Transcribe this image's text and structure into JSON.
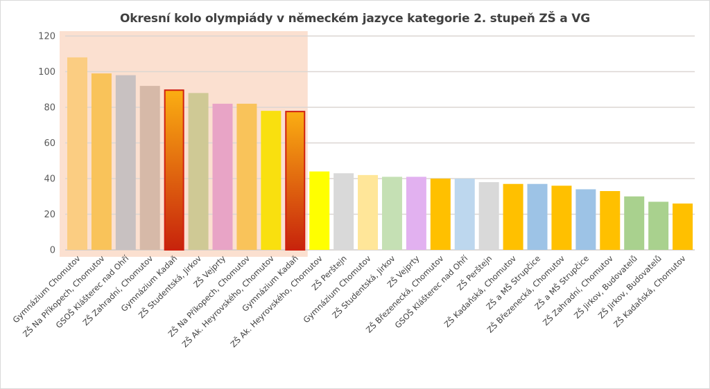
{
  "chart_data": {
    "type": "bar",
    "title": "Okresní kolo olympiády v německém jazyce kategorie 2. stupeň ZŠ a VG",
    "xlabel": "",
    "ylabel": "",
    "ylim": [
      0,
      120
    ],
    "yticks": [
      "0",
      "20",
      "40",
      "60",
      "80",
      "100",
      "120"
    ],
    "grid": true,
    "highlight_region": {
      "from_index": 0,
      "to_index": 9,
      "color": "#fbe0d0"
    },
    "categories": [
      "Gymnázium Chomutov",
      "ZŠ Na Příkopech, Chomutov",
      "GSOŠ Klášterec nad Ohří",
      "ZŠ Zahradní, Chomutov",
      "Gymnázium Kadaň",
      "ZŠ Studentská, Jirkov",
      "ZŠ Vejprty",
      "ZŠ Na Příkopech, Chomutov",
      "ZŠ Ak. Heyrovského, Chomutov",
      "Gymnázium Kadaň",
      "ZŠ Ak. Heyrovského, Chomutov",
      "ZŠ Perštejn",
      "Gymnázium Chomutov",
      "ZŠ Studentská, Jirkov",
      "ZŠ Vejprty",
      "ZŠ Březenecká, Chomutov",
      "GSOŠ Klášterec nad Ohří",
      "ZŠ Perštejn",
      "ZŠ Kadaňská, Chomutov",
      "ZŠ a MŠ Strupčice",
      "ZŠ Březenecká, Chomutov",
      "ZŠ a MŠ Strupčice",
      "ZŠ Zahradní, Chomutov",
      "ZŠ Jirkov, Budovatelů",
      "ZŠ Jirkov, Budovatelů",
      "ZŠ Kadaňská, Chomutov"
    ],
    "values": [
      108,
      99,
      98,
      92,
      90,
      88,
      82,
      82,
      78,
      78,
      44,
      43,
      42,
      41,
      41,
      40,
      40,
      38,
      37,
      37,
      36,
      34,
      33,
      30,
      27,
      26
    ],
    "colors": [
      "#fbcd82",
      "#f9c35a",
      "#c8c1c1",
      "#d6b9a8",
      "gradient",
      "#cfc995",
      "#e8a4c6",
      "#f9c35a",
      "#f9e00f",
      "gradient",
      "#ffff00",
      "#d9d9d9",
      "#ffe699",
      "#c5e0b4",
      "#e2b1f0",
      "#ffc000",
      "#bdd7ee",
      "#d9d9d9",
      "#ffc000",
      "#9dc3e6",
      "#ffc000",
      "#9dc3e6",
      "#ffc000",
      "#a9d18e",
      "#a9d18e",
      "#ffc000"
    ],
    "gradient": {
      "top": "#fbae12",
      "bottom": "#c7230c",
      "border": "#d0200f"
    }
  }
}
